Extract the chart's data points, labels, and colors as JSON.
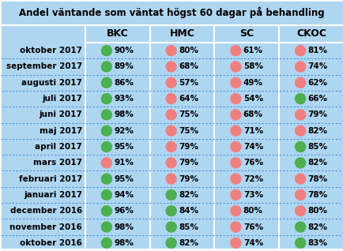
{
  "title": "Andel väntande som väntat högst 60 dagar på behandling",
  "columns": [
    "BKC",
    "HMC",
    "SC",
    "CKOC"
  ],
  "rows": [
    {
      "label": "oktober 2017",
      "values": [
        "90%",
        "80%",
        "61%",
        "81%"
      ],
      "colors": [
        "green",
        "red",
        "red",
        "red"
      ]
    },
    {
      "label": "september 2017",
      "values": [
        "89%",
        "68%",
        "58%",
        "74%"
      ],
      "colors": [
        "green",
        "red",
        "red",
        "red"
      ]
    },
    {
      "label": "augusti 2017",
      "values": [
        "86%",
        "57%",
        "49%",
        "62%"
      ],
      "colors": [
        "green",
        "red",
        "red",
        "red"
      ]
    },
    {
      "label": "juli 2017",
      "values": [
        "93%",
        "64%",
        "54%",
        "66%"
      ],
      "colors": [
        "green",
        "red",
        "red",
        "green"
      ]
    },
    {
      "label": "juni 2017",
      "values": [
        "98%",
        "75%",
        "68%",
        "79%"
      ],
      "colors": [
        "green",
        "red",
        "red",
        "red"
      ]
    },
    {
      "label": "maj 2017",
      "values": [
        "92%",
        "75%",
        "71%",
        "82%"
      ],
      "colors": [
        "green",
        "red",
        "red",
        "red"
      ]
    },
    {
      "label": "april 2017",
      "values": [
        "95%",
        "79%",
        "74%",
        "85%"
      ],
      "colors": [
        "green",
        "red",
        "red",
        "green"
      ]
    },
    {
      "label": "mars 2017",
      "values": [
        "91%",
        "79%",
        "76%",
        "82%"
      ],
      "colors": [
        "red",
        "red",
        "red",
        "green"
      ]
    },
    {
      "label": "februari 2017",
      "values": [
        "95%",
        "79%",
        "72%",
        "78%"
      ],
      "colors": [
        "green",
        "red",
        "red",
        "red"
      ]
    },
    {
      "label": "januari 2017",
      "values": [
        "94%",
        "82%",
        "73%",
        "78%"
      ],
      "colors": [
        "green",
        "green",
        "red",
        "red"
      ]
    },
    {
      "label": "december 2016",
      "values": [
        "96%",
        "84%",
        "80%",
        "80%"
      ],
      "colors": [
        "green",
        "green",
        "red",
        "red"
      ]
    },
    {
      "label": "november 2016",
      "values": [
        "98%",
        "85%",
        "76%",
        "82%"
      ],
      "colors": [
        "green",
        "green",
        "red",
        "green"
      ]
    },
    {
      "label": "oktober 2016",
      "values": [
        "98%",
        "82%",
        "74%",
        "83%"
      ],
      "colors": [
        "green",
        "green",
        "red",
        "green"
      ]
    }
  ],
  "bg_color": "#aed6f1",
  "green_color": "#4caf50",
  "red_color": "#f08080",
  "title_fontsize": 8.5,
  "header_fontsize": 9.0,
  "row_fontsize": 7.5,
  "value_fontsize": 7.5
}
